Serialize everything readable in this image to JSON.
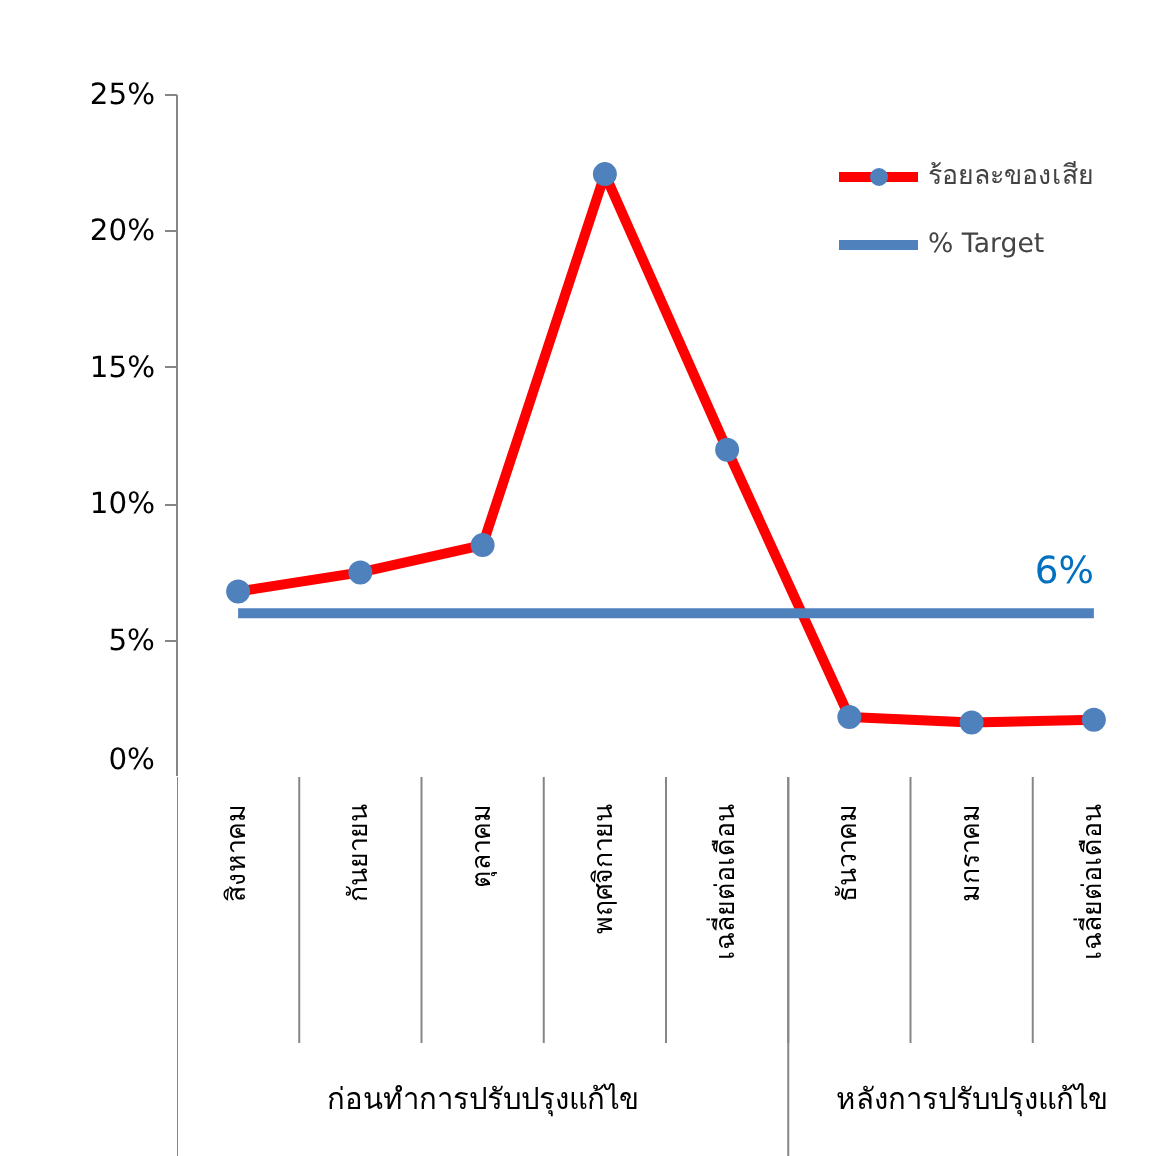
{
  "chart_data": {
    "type": "line",
    "categories": [
      "สิงหาคม",
      "กันยายน",
      "ตุลาคม",
      "พฤศจิกายน",
      "เฉลี่ยต่อเดือน",
      "ธันวาคม",
      "มกราคม",
      "เฉลี่ยต่อเดือน"
    ],
    "series": [
      {
        "name": "ร้อยละของเสีย",
        "color": "#ff0000",
        "colors": [
          "#4f81bd",
          "#4f81bd",
          "#4f81bd",
          "#4f81bd",
          "#4f81bd",
          "#4f81bd",
          "#4f81bd",
          "#4f81bd"
        ],
        "marker": "circle",
        "values": [
          6.8,
          7.5,
          8.5,
          22.1,
          12.0,
          2.2,
          2.0,
          2.1
        ]
      },
      {
        "name": "% Target",
        "color": "#4f81bd",
        "marker": "none",
        "values": [
          6,
          6,
          6,
          6,
          6,
          6,
          6,
          6
        ],
        "value_labels": [
          null,
          null,
          null,
          null,
          null,
          null,
          null,
          "6%"
        ]
      }
    ],
    "ylim": [
      0,
      25
    ],
    "yticks": [
      {
        "value": 0,
        "label": "0%"
      },
      {
        "value": 5,
        "label": "5%"
      },
      {
        "value": 10,
        "label": "10%"
      },
      {
        "value": 15,
        "label": "15%"
      },
      {
        "value": 20,
        "label": "20%"
      },
      {
        "value": 25,
        "label": "25%"
      }
    ],
    "annotations": [
      "ก่อนทำการปรับปรุงแก้ไข",
      "หลังการปรับปรุงแก้ไข"
    ],
    "grid": false,
    "legend": "top right"
  }
}
